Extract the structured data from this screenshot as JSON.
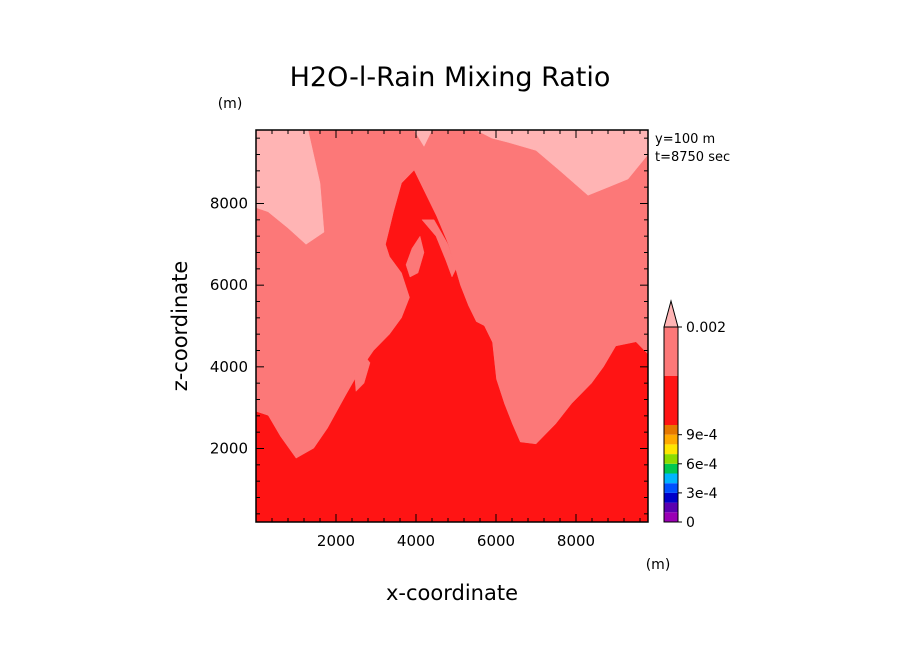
{
  "chart_data": {
    "type": "heatmap",
    "title": "H2O-l-Rain Mixing Ratio",
    "xlabel": "x-coordinate",
    "ylabel": "z-coordinate",
    "x_unit": "(m)",
    "y_unit": "(m)",
    "annotations": [
      "y=100 m",
      "t=8750 sec"
    ],
    "xlim": [
      0,
      9800
    ],
    "ylim": [
      200,
      9800
    ],
    "x_ticks": [
      2000,
      4000,
      6000,
      8000
    ],
    "y_ticks": [
      2000,
      4000,
      6000,
      8000
    ],
    "x_tick_labels": [
      "2000",
      "4000",
      "6000",
      "8000"
    ],
    "y_tick_labels": [
      "2000",
      "4000",
      "6000",
      "8000"
    ],
    "grid": false,
    "levels": [
      0,
      0.0001,
      0.0002,
      0.0003,
      0.0004,
      0.0005,
      0.0006,
      0.0007,
      0.0008,
      0.0009,
      0.001,
      0.0015,
      0.002
    ],
    "colorbar": {
      "labels": [
        "0",
        "3e-4",
        "6e-4",
        "9e-4",
        "0.002"
      ],
      "label_levels": [
        0,
        0.0003,
        0.0006,
        0.0009,
        0.002
      ],
      "bands": [
        {
          "from": 0,
          "to": 0.0001,
          "color": "#9a00b4"
        },
        {
          "from": 0.0001,
          "to": 0.0002,
          "color": "#5a00b0"
        },
        {
          "from": 0.0002,
          "to": 0.0003,
          "color": "#0000c8"
        },
        {
          "from": 0.0003,
          "to": 0.0004,
          "color": "#0050ff"
        },
        {
          "from": 0.0004,
          "to": 0.0005,
          "color": "#00b4ff"
        },
        {
          "from": 0.0005,
          "to": 0.0006,
          "color": "#00c850"
        },
        {
          "from": 0.0006,
          "to": 0.0007,
          "color": "#8cdc00"
        },
        {
          "from": 0.0007,
          "to": 0.0008,
          "color": "#ffe600"
        },
        {
          "from": 0.0008,
          "to": 0.0009,
          "color": "#ffaa00"
        },
        {
          "from": 0.0009,
          "to": 0.001,
          "color": "#e67800"
        },
        {
          "from": 0.001,
          "to": 0.0015,
          "color": "#ff1414"
        },
        {
          "from": 0.0015,
          "to": 0.002,
          "color": "#fc7878"
        }
      ],
      "extend_max_color": "#ffb4b4"
    },
    "regions": [
      {
        "level_range": [
          0.001,
          0.0015
        ],
        "color": "#ff1414",
        "polygon": [
          [
            0,
            200
          ],
          [
            9800,
            200
          ],
          [
            9800,
            4300
          ],
          [
            9500,
            4600
          ],
          [
            9000,
            4500
          ],
          [
            8700,
            4000
          ],
          [
            8400,
            3600
          ],
          [
            7900,
            3100
          ],
          [
            7500,
            2600
          ],
          [
            7000,
            2100
          ],
          [
            6600,
            2150
          ],
          [
            6400,
            2600
          ],
          [
            6200,
            3100
          ],
          [
            6000,
            3700
          ],
          [
            5900,
            4600
          ],
          [
            5700,
            5000
          ],
          [
            5500,
            5100
          ],
          [
            5300,
            5500
          ],
          [
            5100,
            6000
          ],
          [
            4950,
            6500
          ],
          [
            4800,
            7000
          ],
          [
            4500,
            7700
          ],
          [
            4200,
            8300
          ],
          [
            3950,
            8800
          ],
          [
            3650,
            8500
          ],
          [
            3450,
            7800
          ],
          [
            3250,
            7000
          ],
          [
            3350,
            6700
          ],
          [
            3650,
            6300
          ],
          [
            3850,
            5700
          ],
          [
            3650,
            5200
          ],
          [
            3350,
            4800
          ],
          [
            2950,
            4400
          ],
          [
            2600,
            3900
          ],
          [
            2250,
            3300
          ],
          [
            1800,
            2500
          ],
          [
            1450,
            2000
          ],
          [
            1000,
            1750
          ],
          [
            600,
            2300
          ],
          [
            300,
            2800
          ],
          [
            0,
            2900
          ]
        ]
      },
      {
        "level_range": [
          0.0015,
          0.002
        ],
        "color": "#fc7878",
        "polygon": [
          [
            1200,
            2300
          ],
          [
            1450,
            2600
          ],
          [
            1650,
            2900
          ],
          [
            1500,
            3300
          ],
          [
            1200,
            3200
          ],
          [
            1050,
            2800
          ]
        ]
      },
      {
        "level_range": [
          0.0015,
          0.002
        ],
        "color": "#fc7878",
        "polygon": [
          [
            2500,
            3400
          ],
          [
            2700,
            3600
          ],
          [
            2850,
            4100
          ],
          [
            2650,
            4350
          ],
          [
            2450,
            4000
          ]
        ]
      },
      {
        "level_range": [
          0.0015,
          0.002
        ],
        "color": "#fc7878",
        "polygon": [
          [
            4150,
            7600
          ],
          [
            4500,
            7200
          ],
          [
            4750,
            6600
          ],
          [
            4900,
            6200
          ],
          [
            5000,
            6400
          ],
          [
            4800,
            7000
          ],
          [
            4450,
            7600
          ]
        ]
      },
      {
        "level_range": [
          0.0015,
          0.002
        ],
        "color": "#fc7878",
        "polygon": [
          [
            3750,
            6500
          ],
          [
            3900,
            6900
          ],
          [
            4100,
            7200
          ],
          [
            4200,
            6800
          ],
          [
            4050,
            6300
          ],
          [
            3850,
            6200
          ]
        ]
      },
      {
        "level_range": [
          ">0.002"
        ],
        "color": "#ffb4b4",
        "polygon": [
          [
            0,
            9800
          ],
          [
            1300,
            9800
          ],
          [
            1600,
            8500
          ],
          [
            1700,
            7300
          ],
          [
            1250,
            7000
          ],
          [
            800,
            7400
          ],
          [
            300,
            7800
          ],
          [
            0,
            7900
          ]
        ]
      },
      {
        "level_range": [
          ">0.002"
        ],
        "color": "#ffb4b4",
        "polygon": [
          [
            5500,
            9800
          ],
          [
            9800,
            9800
          ],
          [
            9800,
            9200
          ],
          [
            9300,
            8600
          ],
          [
            8800,
            8400
          ],
          [
            8300,
            8200
          ],
          [
            7600,
            8800
          ],
          [
            7000,
            9300
          ],
          [
            6300,
            9500
          ],
          [
            5900,
            9600
          ]
        ]
      },
      {
        "level_range": [
          ">0.002"
        ],
        "color": "#ffb4b4",
        "polygon": [
          [
            3950,
            9800
          ],
          [
            4400,
            9800
          ],
          [
            4200,
            9400
          ]
        ]
      }
    ],
    "background_color": "#fc7878"
  }
}
